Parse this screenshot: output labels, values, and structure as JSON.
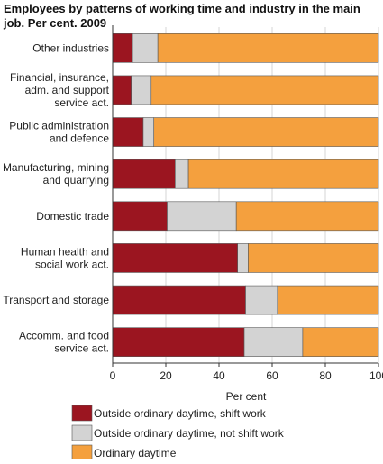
{
  "chart_data": {
    "type": "bar",
    "orientation": "horizontal",
    "stacked": true,
    "title": "Employees by patterns of working time and industry in the main job. Per cent. 2009",
    "xlabel": "Per cent",
    "ylabel": "",
    "xlim": [
      0,
      100
    ],
    "xticks": [
      0,
      20,
      40,
      60,
      80,
      100
    ],
    "grid": true,
    "legend_position": "bottom",
    "categories": [
      [
        "Other industries"
      ],
      [
        "Financial, insurance,",
        "adm. and support",
        "service act."
      ],
      [
        "Public administration",
        "and defence"
      ],
      [
        "Manufacturing, mining",
        "and quarrying"
      ],
      [
        "Domestic trade"
      ],
      [
        "Human health and",
        "social work act."
      ],
      [
        "Transport and storage"
      ],
      [
        "Accomm. and food",
        "service act."
      ]
    ],
    "series": [
      {
        "name": "Outside ordinary daytime, shift work",
        "color": "#9b1520",
        "values": [
          7.5,
          7,
          11.5,
          23.5,
          20.5,
          47,
          50,
          49.5
        ]
      },
      {
        "name": "Outside ordinary daytime, not shift work",
        "color": "#d3d3d3",
        "values": [
          9.5,
          7.5,
          4,
          5,
          26,
          4,
          12,
          22
        ]
      },
      {
        "name": "Ordinary daytime",
        "color": "#f4a03e",
        "values": [
          83,
          85.5,
          84.5,
          71.5,
          53.5,
          49,
          38,
          28.5
        ]
      }
    ]
  }
}
